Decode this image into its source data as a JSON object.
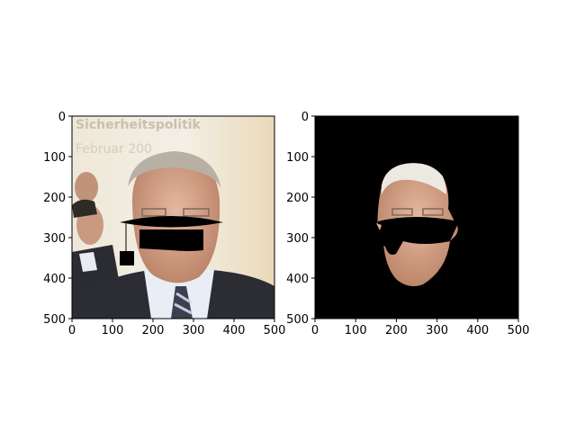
{
  "chart_data": [
    {
      "type": "image",
      "title": "",
      "xlabel": "",
      "ylabel": "",
      "xlim": [
        0,
        500
      ],
      "ylim": [
        500,
        0
      ],
      "xticks": [
        0,
        100,
        200,
        300,
        400,
        500
      ],
      "yticks": [
        0,
        100,
        200,
        300,
        400,
        500
      ],
      "content": "photo-with-masked-regions",
      "background_text": [
        "Sicherheitspolitik",
        "Februar 200"
      ]
    },
    {
      "type": "image",
      "title": "",
      "xlabel": "",
      "ylabel": "",
      "xlim": [
        0,
        500
      ],
      "ylim": [
        500,
        0
      ],
      "xticks": [
        0,
        100,
        200,
        300,
        400,
        500
      ],
      "yticks": [
        0,
        100,
        200,
        300,
        400,
        500
      ],
      "content": "segmented-face-on-black"
    }
  ],
  "colors": {
    "panel_background": "#000000",
    "wall_light": "#f0ece0",
    "wall_warm": "#e8dcc0",
    "skin": "#d9a891",
    "skin_shadow": "#b9866e",
    "hair": "#b8b0a4",
    "suit": "#2b2d33",
    "shirt": "#e9eef6",
    "mask": "#000000"
  }
}
